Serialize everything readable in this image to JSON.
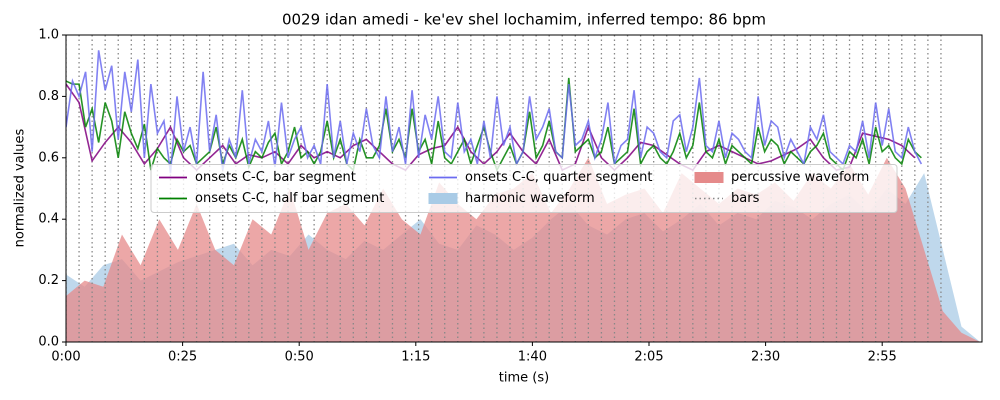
{
  "chart_data": {
    "type": "line",
    "title": "0029 idan amedi - ke'ev shel lochamim, inferred tempo: 86 bpm",
    "xlabel": "time (s)",
    "ylabel": "normalized values",
    "xlim": [
      0,
      196.4
    ],
    "ylim": [
      0,
      1
    ],
    "xticks": [
      {
        "value": 0,
        "label": "0:00"
      },
      {
        "value": 25,
        "label": "0:25"
      },
      {
        "value": 50,
        "label": "0:50"
      },
      {
        "value": 75,
        "label": "1:15"
      },
      {
        "value": 100,
        "label": "1:40"
      },
      {
        "value": 125,
        "label": "2:05"
      },
      {
        "value": 150,
        "label": "2:30"
      },
      {
        "value": 175,
        "label": "2:55"
      }
    ],
    "yticks": [
      {
        "value": 0,
        "label": "0.0"
      },
      0.2,
      0.4,
      0.6,
      0.8,
      {
        "value": 1,
        "label": "1.0"
      }
    ],
    "legend_loc": "center",
    "x": [
      0,
      1.4,
      2.8,
      4.2,
      5.6,
      7,
      8.4,
      9.8,
      11.2,
      12.6,
      14,
      15.4,
      16.8,
      18.2,
      19.6,
      21,
      22.4,
      23.8,
      25.2,
      26.6,
      28,
      29.4,
      30.8,
      32.2,
      33.6,
      35,
      36.4,
      37.8,
      39.2,
      40.6,
      42,
      43.4,
      44.8,
      46.2,
      47.6,
      49,
      50.4,
      51.8,
      53.2,
      54.6,
      56,
      57.4,
      58.8,
      60.2,
      61.6,
      63,
      64.4,
      65.8,
      67.2,
      68.6,
      70,
      71.4,
      72.8,
      74.2,
      75.6,
      77,
      78.4,
      79.8,
      81.2,
      82.6,
      84,
      85.4,
      86.8,
      88.2,
      89.6,
      91,
      92.4,
      93.8,
      95.2,
      96.6,
      98,
      99.4,
      100.8,
      102.2,
      103.6,
      105,
      106.4,
      107.8,
      109.2,
      110.6,
      112,
      113.4,
      114.8,
      116.2,
      117.6,
      119,
      120.4,
      121.8,
      123.2,
      124.6,
      126,
      127.4,
      128.8,
      130.2,
      131.6,
      133,
      134.4,
      135.8,
      137.2,
      138.6,
      140,
      141.4,
      142.8,
      144.2,
      145.6,
      147,
      148.4,
      149.8,
      151.2,
      152.6,
      154,
      155.4,
      156.8,
      158.2,
      159.6,
      161,
      162.4,
      163.8,
      165.2,
      166.6,
      168,
      169.4,
      170.8,
      172.2,
      173.6,
      175,
      176.4,
      177.8,
      179.2,
      180.6,
      182,
      183.4
    ],
    "series": [
      {
        "name": "onsets C-C, bar segment",
        "kind": "line",
        "color": "#800080",
        "x": [
          0,
          2.8,
          5.6,
          8.4,
          11.2,
          14,
          16.8,
          19.6,
          22.4,
          25.2,
          28,
          30.8,
          33.6,
          36.4,
          39.2,
          42,
          44.8,
          47.6,
          50.4,
          53.2,
          56,
          58.8,
          61.6,
          64.4,
          67.2,
          70,
          72.8,
          75.6,
          78.4,
          81.2,
          84,
          86.8,
          89.6,
          92.4,
          95.2,
          98,
          100.8,
          103.6,
          106.4,
          109.2,
          112,
          114.8,
          117.6,
          120.4,
          123.2,
          126,
          128.8,
          131.6,
          134.4,
          137.2,
          140,
          142.8,
          145.6,
          148.4,
          151.2,
          154,
          156.8,
          159.6,
          162.4,
          165.2,
          168,
          170.8,
          173.6,
          176.4,
          179.2,
          182
        ],
        "values": [
          0.84,
          0.78,
          0.59,
          0.65,
          0.7,
          0.65,
          0.58,
          0.63,
          0.7,
          0.6,
          0.56,
          0.6,
          0.64,
          0.58,
          0.61,
          0.6,
          0.62,
          0.58,
          0.64,
          0.6,
          0.62,
          0.6,
          0.64,
          0.66,
          0.62,
          0.58,
          0.56,
          0.61,
          0.63,
          0.64,
          0.7,
          0.62,
          0.58,
          0.62,
          0.68,
          0.62,
          0.58,
          0.66,
          0.56,
          0.58,
          0.7,
          0.6,
          0.56,
          0.6,
          0.65,
          0.64,
          0.61,
          0.58,
          0.56,
          0.62,
          0.64,
          0.62,
          0.6,
          0.58,
          0.59,
          0.61,
          0.63,
          0.66,
          0.6,
          0.56,
          0.57,
          0.68,
          0.67,
          0.66,
          0.64,
          0.6
        ]
      },
      {
        "name": "onsets C-C, half bar segment",
        "kind": "line",
        "color": "#008000",
        "values": [
          0.85,
          0.84,
          0.84,
          0.7,
          0.76,
          0.65,
          0.78,
          0.72,
          0.6,
          0.75,
          0.68,
          0.63,
          0.71,
          0.56,
          0.63,
          0.6,
          0.58,
          0.66,
          0.62,
          0.64,
          0.58,
          0.6,
          0.62,
          0.7,
          0.58,
          0.64,
          0.6,
          0.66,
          0.57,
          0.62,
          0.6,
          0.65,
          0.68,
          0.58,
          0.62,
          0.7,
          0.6,
          0.62,
          0.58,
          0.62,
          0.72,
          0.6,
          0.66,
          0.58,
          0.56,
          0.66,
          0.6,
          0.6,
          0.64,
          0.76,
          0.62,
          0.66,
          0.6,
          0.76,
          0.62,
          0.66,
          0.58,
          0.72,
          0.6,
          0.58,
          0.62,
          0.66,
          0.58,
          0.64,
          0.7,
          0.62,
          0.56,
          0.6,
          0.64,
          0.58,
          0.62,
          0.75,
          0.6,
          0.64,
          0.72,
          0.62,
          0.6,
          0.86,
          0.62,
          0.64,
          0.66,
          0.6,
          0.62,
          0.7,
          0.58,
          0.6,
          0.62,
          0.76,
          0.58,
          0.62,
          0.64,
          0.6,
          0.58,
          0.62,
          0.68,
          0.6,
          0.64,
          0.78,
          0.62,
          0.6,
          0.66,
          0.58,
          0.64,
          0.62,
          0.6,
          0.58,
          0.7,
          0.62,
          0.66,
          0.64,
          0.58,
          0.62,
          0.6,
          0.58,
          0.62,
          0.64,
          0.68,
          0.6,
          0.58,
          0.56,
          0.62,
          0.6,
          0.66,
          0.58,
          0.7,
          0.62,
          0.64,
          0.6,
          0.58,
          0.66,
          0.62,
          0.6
        ]
      },
      {
        "name": "onsets C-C, quarter segment",
        "kind": "line",
        "color": "#6b6bf0",
        "values": [
          0.7,
          0.85,
          0.8,
          0.88,
          0.62,
          0.95,
          0.82,
          0.9,
          0.66,
          0.88,
          0.75,
          0.92,
          0.6,
          0.84,
          0.68,
          0.72,
          0.55,
          0.8,
          0.62,
          0.7,
          0.58,
          0.88,
          0.62,
          0.74,
          0.56,
          0.66,
          0.6,
          0.82,
          0.58,
          0.66,
          0.62,
          0.72,
          0.57,
          0.78,
          0.6,
          0.66,
          0.7,
          0.6,
          0.64,
          0.58,
          0.84,
          0.6,
          0.72,
          0.58,
          0.68,
          0.62,
          0.76,
          0.64,
          0.6,
          0.8,
          0.62,
          0.7,
          0.58,
          0.82,
          0.6,
          0.74,
          0.66,
          0.8,
          0.62,
          0.6,
          0.78,
          0.62,
          0.66,
          0.58,
          0.72,
          0.6,
          0.8,
          0.64,
          0.7,
          0.58,
          0.62,
          0.8,
          0.66,
          0.7,
          0.76,
          0.62,
          0.6,
          0.84,
          0.64,
          0.66,
          0.72,
          0.6,
          0.66,
          0.78,
          0.58,
          0.64,
          0.66,
          0.82,
          0.6,
          0.7,
          0.68,
          0.62,
          0.6,
          0.72,
          0.74,
          0.62,
          0.7,
          0.86,
          0.64,
          0.62,
          0.72,
          0.6,
          0.68,
          0.66,
          0.62,
          0.6,
          0.8,
          0.64,
          0.72,
          0.7,
          0.6,
          0.66,
          0.62,
          0.58,
          0.7,
          0.66,
          0.74,
          0.62,
          0.6,
          0.58,
          0.64,
          0.62,
          0.72,
          0.6,
          0.78,
          0.64,
          0.76,
          0.62,
          0.6,
          0.7,
          0.62,
          0.58
        ]
      },
      {
        "name": "harmonic waveform",
        "kind": "area",
        "color": "#a9cbe6",
        "x": [
          0,
          4,
          8,
          12,
          16,
          20,
          24,
          28,
          32,
          36,
          40,
          44,
          48,
          52,
          56,
          60,
          64,
          68,
          72,
          76,
          80,
          84,
          88,
          92,
          96,
          100,
          104,
          108,
          112,
          116,
          120,
          124,
          128,
          132,
          136,
          140,
          144,
          148,
          152,
          156,
          160,
          164,
          168,
          172,
          176,
          180,
          184,
          188,
          192,
          196
        ],
        "values": [
          0.22,
          0.18,
          0.25,
          0.27,
          0.2,
          0.23,
          0.26,
          0.28,
          0.3,
          0.32,
          0.25,
          0.3,
          0.28,
          0.35,
          0.3,
          0.27,
          0.33,
          0.3,
          0.35,
          0.4,
          0.32,
          0.3,
          0.38,
          0.35,
          0.3,
          0.34,
          0.4,
          0.45,
          0.38,
          0.35,
          0.4,
          0.42,
          0.36,
          0.4,
          0.45,
          0.38,
          0.42,
          0.4,
          0.46,
          0.44,
          0.4,
          0.45,
          0.48,
          0.42,
          0.5,
          0.45,
          0.55,
          0.3,
          0.05,
          0
        ]
      },
      {
        "name": "percussive waveform",
        "kind": "area",
        "color": "#e58a8a",
        "x": [
          0,
          4,
          8,
          12,
          16,
          20,
          24,
          28,
          32,
          36,
          40,
          44,
          48,
          52,
          56,
          60,
          64,
          68,
          72,
          76,
          80,
          84,
          88,
          92,
          96,
          100,
          104,
          108,
          112,
          116,
          120,
          124,
          128,
          132,
          136,
          140,
          144,
          148,
          152,
          156,
          160,
          164,
          168,
          172,
          176,
          180,
          184,
          188,
          192,
          196
        ],
        "values": [
          0.15,
          0.2,
          0.18,
          0.35,
          0.25,
          0.4,
          0.3,
          0.45,
          0.3,
          0.25,
          0.4,
          0.35,
          0.5,
          0.3,
          0.42,
          0.45,
          0.38,
          0.5,
          0.4,
          0.35,
          0.52,
          0.45,
          0.4,
          0.48,
          0.5,
          0.55,
          0.42,
          0.5,
          0.6,
          0.45,
          0.48,
          0.5,
          0.42,
          0.55,
          0.5,
          0.45,
          0.5,
          0.48,
          0.52,
          0.46,
          0.55,
          0.5,
          0.58,
          0.48,
          0.6,
          0.5,
          0.3,
          0.1,
          0.03,
          0
        ]
      }
    ],
    "bars": {
      "name": "bars",
      "color": "#888888",
      "x": [
        0,
        2.8,
        5.6,
        8.4,
        11.2,
        14,
        16.8,
        19.6,
        22.4,
        25.2,
        28,
        30.8,
        33.6,
        36.4,
        39.2,
        42,
        44.8,
        47.6,
        50.4,
        53.2,
        56,
        58.8,
        61.6,
        64.4,
        67.2,
        70,
        72.8,
        75.6,
        78.4,
        81.2,
        84,
        86.8,
        89.6,
        92.4,
        95.2,
        98,
        100.8,
        103.6,
        106.4,
        109.2,
        112,
        114.8,
        117.6,
        120.4,
        123.2,
        126,
        128.8,
        131.6,
        134.4,
        137.2,
        140,
        142.8,
        145.6,
        148.4,
        151.2,
        154,
        156.8,
        159.6,
        162.4,
        165.2,
        168,
        170.8,
        173.6,
        176.4,
        179.2,
        182,
        184.8,
        187.6
      ]
    }
  }
}
